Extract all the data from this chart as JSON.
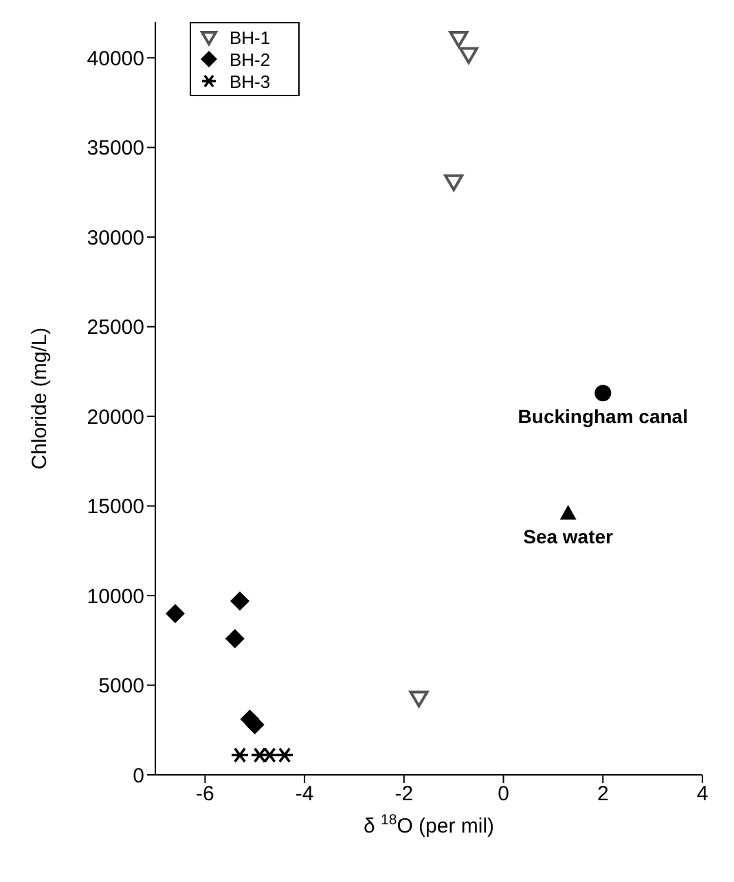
{
  "chart_data": {
    "type": "scatter",
    "xlabel": "δ $^{18}$O (per mil)",
    "ylabel": "Chloride (mg/L)",
    "xlim": [
      -7,
      4
    ],
    "xticks": [
      -6,
      -4,
      -2,
      0,
      2,
      4
    ],
    "ylim": [
      0,
      42000
    ],
    "yticks": [
      0,
      5000,
      10000,
      15000,
      20000,
      25000,
      30000,
      35000,
      40000
    ],
    "legend": "top left",
    "series": [
      {
        "name": "BH-1",
        "color": "#555555",
        "marker": "triangle-down",
        "x": [
          -0.9,
          -0.7,
          -1.0,
          -1.7
        ],
        "values": [
          41100,
          40200,
          33100,
          4300
        ]
      },
      {
        "name": "BH-2",
        "color": "#000000",
        "marker": "diamond",
        "x": [
          -6.6,
          -5.3,
          -5.4,
          -5.1,
          -5.0
        ],
        "values": [
          9000,
          9700,
          7600,
          3100,
          2800
        ]
      },
      {
        "name": "BH-3",
        "color": "#000000",
        "marker": "cross",
        "x": [
          -5.3,
          -4.9,
          -4.7,
          -4.4
        ],
        "values": [
          1100,
          1100,
          1100,
          1100
        ]
      },
      {
        "color": "#000000",
        "marker": "circle",
        "x": [
          2.0
        ],
        "values": [
          21300
        ]
      },
      {
        "color": "#000000",
        "marker": "triangle",
        "x": [
          1.3
        ],
        "values": [
          14600
        ]
      }
    ],
    "annotations": [
      {
        "text": "Buckingham canal",
        "x": 2.0,
        "y": 21300
      },
      {
        "text": "Sea water",
        "x": 1.3,
        "y": 14600
      }
    ]
  }
}
